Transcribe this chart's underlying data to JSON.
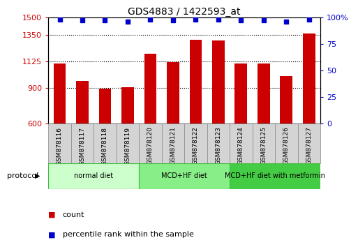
{
  "title": "GDS4883 / 1422593_at",
  "samples": [
    "GSM878116",
    "GSM878117",
    "GSM878118",
    "GSM878119",
    "GSM878120",
    "GSM878121",
    "GSM878122",
    "GSM878123",
    "GSM878124",
    "GSM878125",
    "GSM878126",
    "GSM878127"
  ],
  "bar_values": [
    1110,
    960,
    895,
    910,
    1190,
    1120,
    1310,
    1305,
    1110,
    1110,
    1000,
    1360
  ],
  "percentile_values": [
    98,
    97,
    97,
    96,
    98,
    97,
    98,
    98,
    97,
    97,
    96,
    98
  ],
  "bar_color": "#cc0000",
  "percentile_color": "#0000cc",
  "ylim_left": [
    600,
    1500
  ],
  "ylim_right": [
    0,
    100
  ],
  "yticks_left": [
    600,
    900,
    1125,
    1350,
    1500
  ],
  "yticks_right": [
    0,
    25,
    50,
    75,
    100
  ],
  "grid_values": [
    900,
    1125,
    1350
  ],
  "protocols": [
    {
      "label": "normal diet",
      "start": 0,
      "end": 4,
      "color": "#ccffcc",
      "border": "#44bb44"
    },
    {
      "label": "MCD+HF diet",
      "start": 4,
      "end": 8,
      "color": "#88ee88",
      "border": "#44bb44"
    },
    {
      "label": "MCD+HF diet with metformin",
      "start": 8,
      "end": 12,
      "color": "#44cc44",
      "border": "#44bb44"
    }
  ],
  "legend_count_label": "count",
  "legend_percentile_label": "percentile rank within the sample",
  "protocol_label": "protocol",
  "label_box_color": "#d4d4d4",
  "bg_color": "#ffffff"
}
